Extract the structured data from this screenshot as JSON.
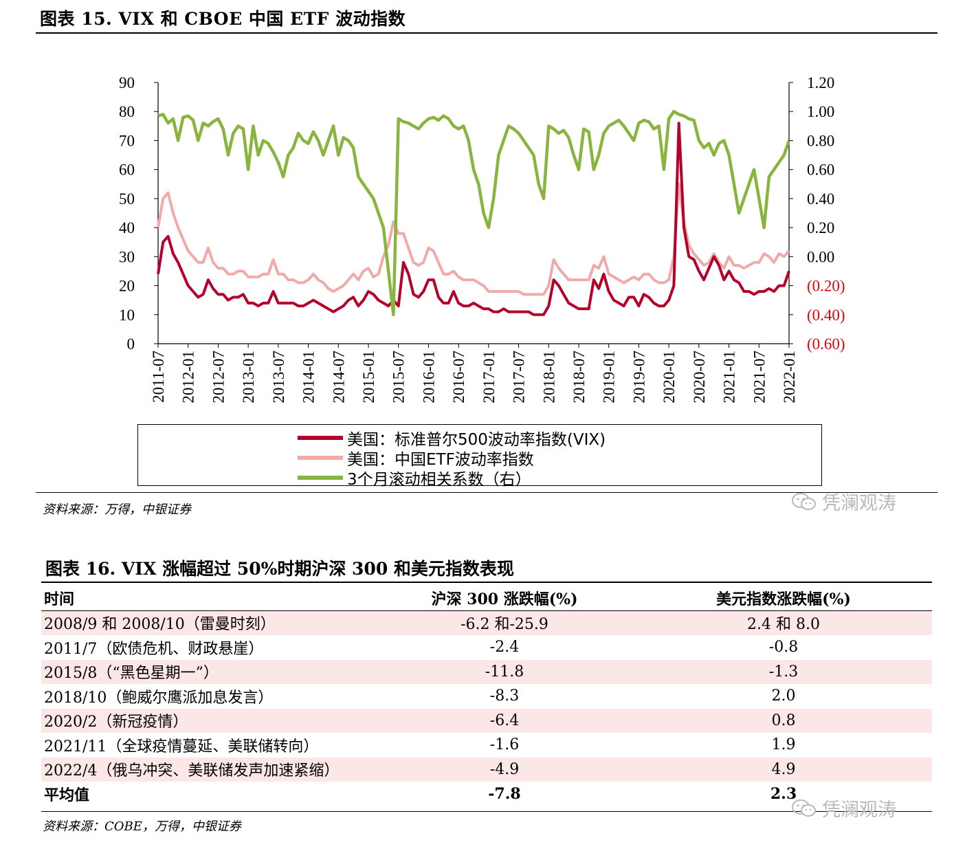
{
  "figure15": {
    "title": "图表 15. VIX 和 CBOE 中国 ETF 波动指数",
    "source": "资料来源：万得，中银证券"
  },
  "figure16": {
    "title": "图表 16. VIX 涨幅超过 50%时期沪深 300 和美元指数表现",
    "source": "资料来源：COBE，万得，中银证券",
    "columns": [
      "时间",
      "沪深 300 涨跌幅(%)",
      "美元指数涨跌幅(%)"
    ],
    "rows": [
      {
        "period": "2008/9 和 2008/10（雷曼时刻）",
        "hs300": "-6.2 和-25.9",
        "dxy": "2.4 和 8.0"
      },
      {
        "period": "2011/7（欧债危机、财政悬崖）",
        "hs300": "-2.4",
        "dxy": "-0.8"
      },
      {
        "period": "2015/8（“黑色星期一”）",
        "hs300": "-11.8",
        "dxy": "-1.3"
      },
      {
        "period": "2018/10（鲍威尔鹰派加息发言）",
        "hs300": "-8.3",
        "dxy": "2.0"
      },
      {
        "period": "2020/2（新冠疫情）",
        "hs300": "-6.4",
        "dxy": "0.8"
      },
      {
        "period": "2021/11（全球疫情蔓延、美联储转向）",
        "hs300": "-1.6",
        "dxy": "1.9"
      },
      {
        "period": "2022/4（俄乌冲突、美联储发声加速紧缩）",
        "hs300": "-4.9",
        "dxy": "4.9"
      }
    ],
    "average": {
      "period": "平均值",
      "hs300": "-7.8",
      "dxy": "2.3"
    }
  },
  "watermark": {
    "text": "凭澜观涛",
    "icon": "wechat-icon"
  },
  "chart_data": {
    "type": "line",
    "title": "",
    "xlabel": "",
    "ylabel": "",
    "x_tick_labels": [
      "2011-07",
      "2012-01",
      "2012-07",
      "2013-01",
      "2013-07",
      "2014-01",
      "2014-07",
      "2015-01",
      "2015-07",
      "2016-01",
      "2016-07",
      "2017-01",
      "2017-07",
      "2018-01",
      "2018-07",
      "2019-01",
      "2019-07",
      "2020-01",
      "2020-07",
      "2021-01",
      "2021-07",
      "2022-01"
    ],
    "ylim_left": [
      0,
      90
    ],
    "yticks_left": [
      "0",
      "10",
      "20",
      "30",
      "40",
      "50",
      "60",
      "70",
      "80",
      "90"
    ],
    "ylim_right": [
      -0.6,
      1.2
    ],
    "yticks_right": [
      "(0.60)",
      "(0.40)",
      "(0.20)",
      "0.00",
      "0.20",
      "0.40",
      "0.60",
      "0.80",
      "1.00",
      "1.20"
    ],
    "right_negative_color": "#e8000b",
    "legend_position": "bottom",
    "grid": false,
    "x_dates": [
      "2011-07",
      "2011-08",
      "2011-09",
      "2011-10",
      "2011-11",
      "2011-12",
      "2012-01",
      "2012-02",
      "2012-03",
      "2012-04",
      "2012-05",
      "2012-06",
      "2012-07",
      "2012-08",
      "2012-09",
      "2012-10",
      "2012-11",
      "2012-12",
      "2013-01",
      "2013-02",
      "2013-03",
      "2013-04",
      "2013-05",
      "2013-06",
      "2013-07",
      "2013-08",
      "2013-09",
      "2013-10",
      "2013-11",
      "2013-12",
      "2014-01",
      "2014-02",
      "2014-03",
      "2014-04",
      "2014-05",
      "2014-06",
      "2014-07",
      "2014-08",
      "2014-09",
      "2014-10",
      "2014-11",
      "2014-12",
      "2015-01",
      "2015-02",
      "2015-03",
      "2015-04",
      "2015-05",
      "2015-06",
      "2015-07",
      "2015-08",
      "2015-09",
      "2015-10",
      "2015-11",
      "2015-12",
      "2016-01",
      "2016-02",
      "2016-03",
      "2016-04",
      "2016-05",
      "2016-06",
      "2016-07",
      "2016-08",
      "2016-09",
      "2016-10",
      "2016-11",
      "2016-12",
      "2017-01",
      "2017-02",
      "2017-03",
      "2017-04",
      "2017-05",
      "2017-06",
      "2017-07",
      "2017-08",
      "2017-09",
      "2017-10",
      "2017-11",
      "2017-12",
      "2018-01",
      "2018-02",
      "2018-03",
      "2018-04",
      "2018-05",
      "2018-06",
      "2018-07",
      "2018-08",
      "2018-09",
      "2018-10",
      "2018-11",
      "2018-12",
      "2019-01",
      "2019-02",
      "2019-03",
      "2019-04",
      "2019-05",
      "2019-06",
      "2019-07",
      "2019-08",
      "2019-09",
      "2019-10",
      "2019-11",
      "2019-12",
      "2020-01",
      "2020-02",
      "2020-03",
      "2020-04",
      "2020-05",
      "2020-06",
      "2020-07",
      "2020-08",
      "2020-09",
      "2020-10",
      "2020-11",
      "2020-12",
      "2021-01",
      "2021-02",
      "2021-03",
      "2021-04",
      "2021-05",
      "2021-06",
      "2021-07",
      "2021-08",
      "2021-09",
      "2021-10",
      "2021-11",
      "2021-12",
      "2022-01"
    ],
    "series": [
      {
        "name": "美国：标准普尔500波动率指数(VIX)",
        "axis": "left",
        "color": "#b5002b",
        "values": [
          24,
          35,
          37,
          31,
          28,
          24,
          20,
          18,
          16,
          17,
          22,
          19,
          17,
          17,
          15,
          16,
          16,
          17,
          14,
          14,
          13,
          14,
          14,
          18,
          14,
          14,
          14,
          14,
          13,
          13,
          14,
          15,
          14,
          13,
          12,
          11,
          12,
          13,
          15,
          16,
          13,
          15,
          18,
          17,
          15,
          14,
          13,
          15,
          13,
          28,
          24,
          17,
          16,
          18,
          22,
          22,
          16,
          14,
          14,
          18,
          14,
          13,
          13,
          14,
          13,
          12,
          12,
          11,
          11,
          12,
          11,
          11,
          11,
          11,
          11,
          10,
          10,
          10,
          13,
          22,
          20,
          17,
          14,
          13,
          12,
          12,
          12,
          22,
          19,
          24,
          18,
          15,
          14,
          13,
          16,
          16,
          13,
          17,
          16,
          14,
          13,
          13,
          15,
          20,
          76,
          40,
          30,
          29,
          25,
          22,
          26,
          30,
          27,
          22,
          25,
          22,
          21,
          18,
          18,
          17,
          18,
          18,
          19,
          18,
          20,
          20,
          25
        ]
      },
      {
        "name": "美国：中国ETF波动率指数",
        "axis": "left",
        "color": "#f0aaaa",
        "values": [
          40,
          50,
          52,
          45,
          40,
          36,
          32,
          30,
          28,
          28,
          33,
          28,
          26,
          26,
          24,
          24,
          25,
          25,
          23,
          23,
          23,
          24,
          24,
          29,
          24,
          24,
          22,
          22,
          21,
          21,
          22,
          24,
          22,
          21,
          19,
          18,
          19,
          20,
          22,
          24,
          22,
          25,
          26,
          23,
          24,
          30,
          34,
          42,
          38,
          38,
          33,
          28,
          27,
          28,
          33,
          32,
          28,
          24,
          24,
          25,
          23,
          22,
          22,
          22,
          21,
          20,
          18,
          18,
          18,
          18,
          18,
          18,
          18,
          17,
          17,
          17,
          17,
          17,
          20,
          29,
          26,
          24,
          22,
          22,
          22,
          22,
          22,
          27,
          26,
          30,
          24,
          23,
          22,
          21,
          22,
          23,
          22,
          24,
          24,
          22,
          21,
          21,
          22,
          30,
          55,
          42,
          34,
          31,
          29,
          27,
          28,
          31,
          28,
          26,
          30,
          27,
          27,
          26,
          27,
          28,
          28,
          31,
          30,
          28,
          31,
          30,
          32
        ]
      },
      {
        "name": "3个月滚动相关系数（右）",
        "axis": "right",
        "color": "#8ab440",
        "values": [
          0.97,
          0.98,
          0.92,
          0.95,
          0.8,
          0.96,
          0.97,
          0.94,
          0.8,
          0.92,
          0.9,
          0.93,
          0.95,
          0.88,
          0.7,
          0.85,
          0.9,
          0.88,
          0.6,
          0.9,
          0.7,
          0.8,
          0.78,
          0.72,
          0.65,
          0.55,
          0.7,
          0.75,
          0.85,
          0.8,
          0.78,
          0.86,
          0.8,
          0.7,
          0.8,
          0.9,
          0.7,
          0.82,
          0.8,
          0.75,
          0.55,
          0.5,
          0.45,
          0.4,
          0.3,
          0.2,
          -0.1,
          -0.4,
          0.95,
          0.93,
          0.92,
          0.9,
          0.88,
          0.92,
          0.95,
          0.96,
          0.94,
          0.97,
          0.95,
          0.9,
          0.88,
          0.9,
          0.8,
          0.6,
          0.5,
          0.3,
          0.2,
          0.4,
          0.7,
          0.8,
          0.9,
          0.88,
          0.85,
          0.8,
          0.75,
          0.7,
          0.5,
          0.4,
          0.9,
          0.88,
          0.85,
          0.87,
          0.82,
          0.7,
          0.6,
          0.88,
          0.86,
          0.6,
          0.7,
          0.85,
          0.9,
          0.92,
          0.94,
          0.9,
          0.85,
          0.8,
          0.92,
          0.94,
          0.93,
          0.88,
          0.9,
          0.6,
          0.95,
          1.0,
          0.98,
          0.97,
          0.95,
          0.94,
          0.8,
          0.75,
          0.78,
          0.7,
          0.78,
          0.8,
          0.7,
          0.5,
          0.3,
          0.4,
          0.5,
          0.6,
          0.4,
          0.2,
          0.55,
          0.6,
          0.65,
          0.7,
          0.8
        ]
      }
    ]
  }
}
